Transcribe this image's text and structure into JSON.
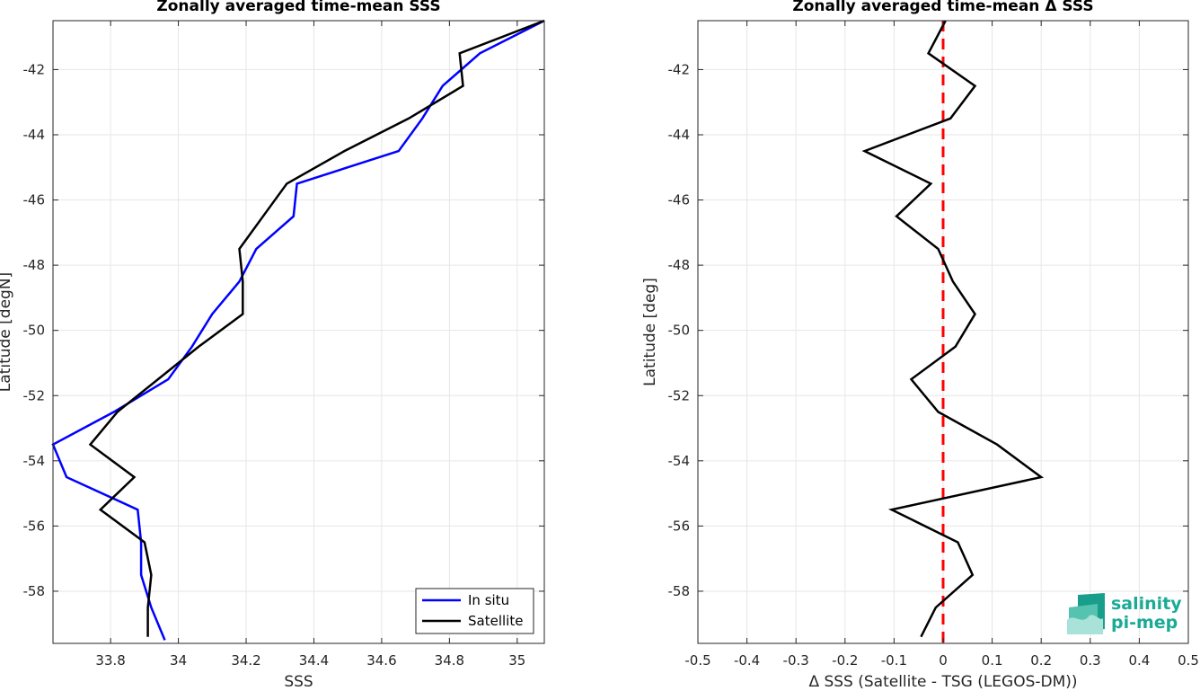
{
  "chart_data": [
    {
      "type": "line",
      "title": "Zonally averaged time-mean SSS",
      "xlabel": "SSS",
      "ylabel": "Latitude [degN]",
      "xlim": [
        33.63,
        35.08
      ],
      "ylim": [
        -59.6,
        -40.5
      ],
      "xticks": [
        33.8,
        34,
        34.2,
        34.4,
        34.6,
        34.8,
        35
      ],
      "xtick_labels": [
        "33.8",
        "34",
        "34.2",
        "34.4",
        "34.6",
        "34.8",
        "35"
      ],
      "yticks": [
        -58,
        -56,
        -54,
        -52,
        -50,
        -48,
        -46,
        -44,
        -42
      ],
      "ytick_labels": [
        "-58",
        "-56",
        "-54",
        "-52",
        "-50",
        "-48",
        "-46",
        "-44",
        "-42"
      ],
      "grid": true,
      "legend_position": "bottom-right",
      "series": [
        {
          "name": "In situ",
          "color": "#0000ff",
          "points": [
            [
              35.08,
              -40.5
            ],
            [
              34.89,
              -41.5
            ],
            [
              34.78,
              -42.5
            ],
            [
              34.72,
              -43.5
            ],
            [
              34.65,
              -44.5
            ],
            [
              34.35,
              -45.5
            ],
            [
              34.34,
              -46.5
            ],
            [
              34.23,
              -47.5
            ],
            [
              34.18,
              -48.5
            ],
            [
              34.1,
              -49.5
            ],
            [
              34.04,
              -50.5
            ],
            [
              33.97,
              -51.5
            ],
            [
              33.81,
              -52.5
            ],
            [
              33.63,
              -53.5
            ],
            [
              33.67,
              -54.5
            ],
            [
              33.88,
              -55.5
            ],
            [
              33.89,
              -56.5
            ],
            [
              33.89,
              -57.5
            ],
            [
              33.92,
              -58.5
            ],
            [
              33.96,
              -59.5
            ]
          ]
        },
        {
          "name": "Satellite",
          "color": "#000000",
          "points": [
            [
              35.08,
              -40.5
            ],
            [
              34.83,
              -41.5
            ],
            [
              34.84,
              -42.5
            ],
            [
              34.68,
              -43.5
            ],
            [
              34.49,
              -44.5
            ],
            [
              34.32,
              -45.5
            ],
            [
              34.25,
              -46.5
            ],
            [
              34.18,
              -47.5
            ],
            [
              34.19,
              -48.5
            ],
            [
              34.19,
              -49.5
            ],
            [
              34.06,
              -50.5
            ],
            [
              33.94,
              -51.5
            ],
            [
              33.82,
              -52.5
            ],
            [
              33.74,
              -53.5
            ],
            [
              33.87,
              -54.5
            ],
            [
              33.77,
              -55.5
            ],
            [
              33.9,
              -56.5
            ],
            [
              33.92,
              -57.5
            ],
            [
              33.91,
              -58.5
            ],
            [
              33.91,
              -59.4
            ]
          ]
        }
      ]
    },
    {
      "type": "line",
      "title": "Zonally averaged time-mean Δ SSS",
      "xlabel": "Δ SSS (Satellite - TSG (LEGOS-DM))",
      "ylabel": "Latitude [deg]",
      "xlim": [
        -0.5,
        0.5
      ],
      "ylim": [
        -59.6,
        -40.5
      ],
      "xticks": [
        -0.5,
        -0.4,
        -0.3,
        -0.2,
        -0.1,
        0,
        0.1,
        0.2,
        0.3,
        0.4,
        0.5
      ],
      "xtick_labels": [
        "-0.5",
        "-0.4",
        "-0.3",
        "-0.2",
        "-0.1",
        "0",
        "0.1",
        "0.2",
        "0.3",
        "0.4",
        "0.5"
      ],
      "yticks": [
        -58,
        -56,
        -54,
        -52,
        -50,
        -48,
        -46,
        -44,
        -42
      ],
      "ytick_labels": [
        "-58",
        "-56",
        "-54",
        "-52",
        "-50",
        "-48",
        "-46",
        "-44",
        "-42"
      ],
      "grid": true,
      "reference_line": {
        "x": 0,
        "color": "#ff0000",
        "style": "dashed"
      },
      "series": [
        {
          "color": "#000000",
          "points": [
            [
              0.005,
              -40.5
            ],
            [
              -0.03,
              -41.5
            ],
            [
              0.065,
              -42.5
            ],
            [
              0.015,
              -43.5
            ],
            [
              -0.16,
              -44.5
            ],
            [
              -0.025,
              -45.5
            ],
            [
              -0.095,
              -46.5
            ],
            [
              -0.01,
              -47.5
            ],
            [
              0.02,
              -48.5
            ],
            [
              0.065,
              -49.5
            ],
            [
              0.025,
              -50.5
            ],
            [
              -0.065,
              -51.5
            ],
            [
              -0.01,
              -52.5
            ],
            [
              0.11,
              -53.5
            ],
            [
              0.2,
              -54.5
            ],
            [
              -0.105,
              -55.5
            ],
            [
              0.03,
              -56.5
            ],
            [
              0.06,
              -57.5
            ],
            [
              -0.015,
              -58.5
            ],
            [
              -0.045,
              -59.4
            ]
          ]
        }
      ]
    }
  ],
  "logo": {
    "line1": "salinity",
    "line2": "pi-mep",
    "color": "#1aaa96"
  }
}
